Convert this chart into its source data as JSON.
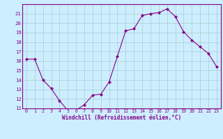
{
  "x": [
    0,
    1,
    2,
    3,
    4,
    5,
    6,
    7,
    8,
    9,
    10,
    11,
    12,
    13,
    14,
    15,
    16,
    17,
    18,
    19,
    20,
    21,
    22,
    23
  ],
  "y": [
    16.2,
    16.2,
    14.0,
    13.1,
    11.8,
    10.8,
    10.8,
    11.4,
    12.4,
    12.5,
    13.8,
    16.5,
    19.2,
    19.4,
    20.8,
    21.0,
    21.1,
    21.5,
    20.7,
    19.1,
    18.2,
    17.5,
    16.8,
    15.4
  ],
  "line_color": "#880088",
  "marker": "D",
  "marker_size": 2.0,
  "bg_color": "#cceeff",
  "grid_color": "#aacccc",
  "tick_color": "#880088",
  "label_color": "#880088",
  "xlabel": "Windchill (Refroidissement éolien,°C)",
  "ylim": [
    11,
    22
  ],
  "xlim": [
    -0.5,
    23.5
  ],
  "yticks": [
    11,
    12,
    13,
    14,
    15,
    16,
    17,
    18,
    19,
    20,
    21
  ],
  "xticks": [
    0,
    1,
    2,
    3,
    4,
    5,
    6,
    7,
    8,
    9,
    10,
    11,
    12,
    13,
    14,
    15,
    16,
    17,
    18,
    19,
    20,
    21,
    22,
    23
  ]
}
